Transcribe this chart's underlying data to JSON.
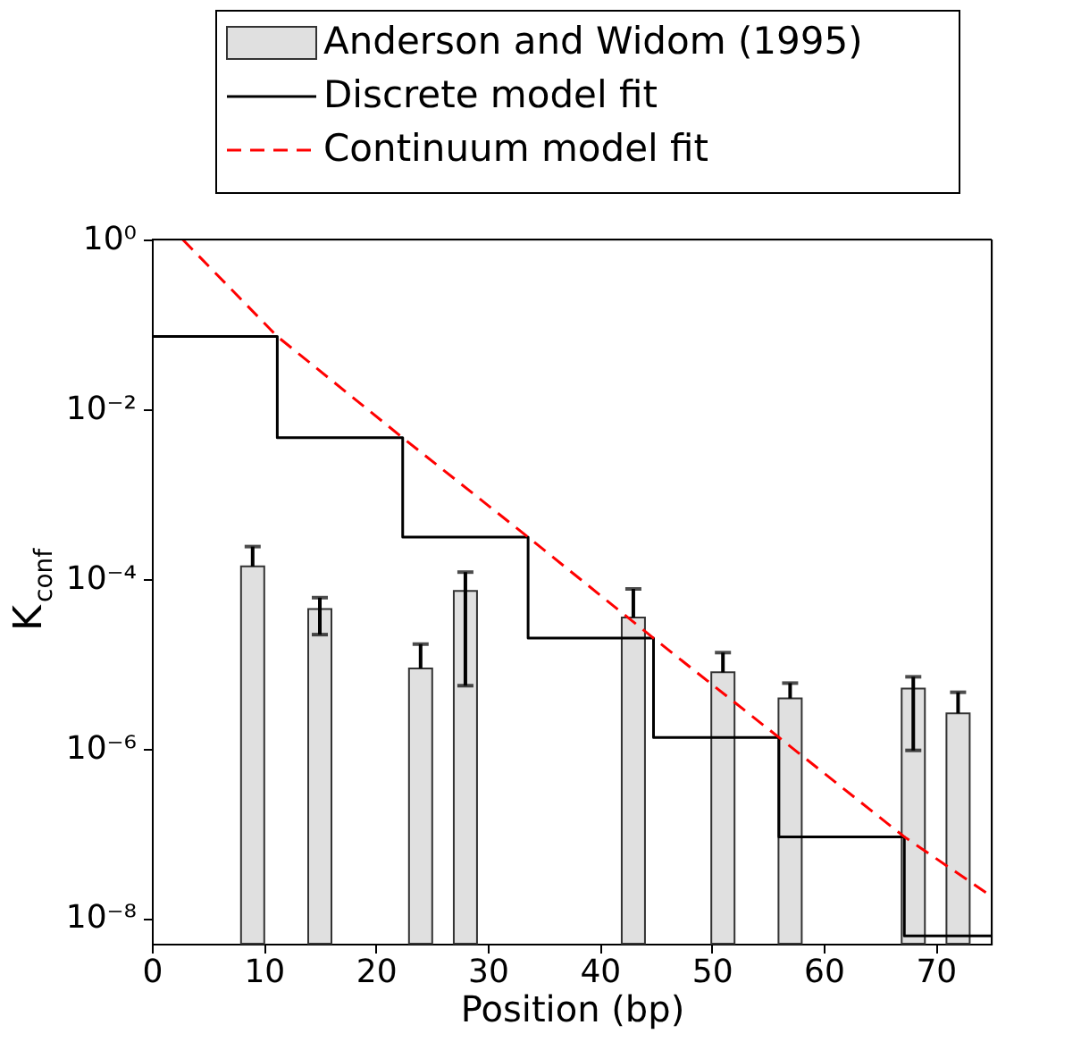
{
  "chart_data": {
    "type": "bar",
    "xlabel": "Position (bp)",
    "ylabel": "K$_{conf}$",
    "xlim": [
      0,
      75
    ],
    "xticks": [
      0,
      10,
      20,
      30,
      40,
      50,
      60,
      70
    ],
    "ylim": [
      5e-09,
      1
    ],
    "yticks": [
      {
        "value": 1,
        "label": "10⁰"
      },
      {
        "value": 0.01,
        "label": "10⁻²"
      },
      {
        "value": 0.0001,
        "label": "10⁻⁴"
      },
      {
        "value": 1e-06,
        "label": "10⁻⁶"
      },
      {
        "value": 1e-08,
        "label": "10⁻⁸"
      }
    ],
    "log": "y",
    "grid": false,
    "legend": "top right",
    "marker": "none",
    "series": [
      {
        "name": "Anderson and Widom (1995)",
        "color": "#e0e0e0",
        "x": [
          9,
          15,
          24,
          28,
          43,
          51,
          57,
          68,
          72
        ],
        "values": [
          0.00014,
          4.4e-05,
          8.8e-06,
          7.2e-05,
          3.5e-05,
          7.9e-06,
          3.9e-06,
          5.1e-06,
          2.6e-06
        ],
        "errors": [
          [
            0.00014,
            0.00024
          ],
          [
            2.2e-05,
            6e-05
          ],
          [
            8.8e-06,
            1.7e-05
          ],
          [
            5.5e-06,
            0.00012
          ],
          [
            3.5e-05,
            7.6e-05
          ],
          [
            7.9e-06,
            1.35e-05
          ],
          [
            3.9e-06,
            5.9e-06
          ],
          [
            9.5e-07,
            7e-06
          ],
          [
            2.6e-06,
            4.6e-06
          ]
        ]
      },
      {
        "name": "Discrete model fit",
        "type": "step",
        "color": "#000000",
        "line_style": "solid",
        "x": [
          0,
          11.2,
          22.4,
          33.6,
          44.8,
          56,
          67.2,
          75
        ],
        "values": [
          0.072,
          0.0046,
          0.00031,
          2e-05,
          1.35e-06,
          9.1e-08,
          6.2e-09,
          6.2e-09
        ]
      },
      {
        "name": "Continuum model fit",
        "type": "line",
        "color": "#ff0000",
        "line_style": "dashed",
        "x": [
          2.75,
          11.2,
          22.4,
          33.6,
          44.8,
          56,
          67.2,
          74.5
        ],
        "values": [
          1.0,
          0.072,
          0.0046,
          0.00031,
          2e-05,
          1.35e-06,
          9.1e-08,
          2e-08
        ]
      }
    ]
  }
}
